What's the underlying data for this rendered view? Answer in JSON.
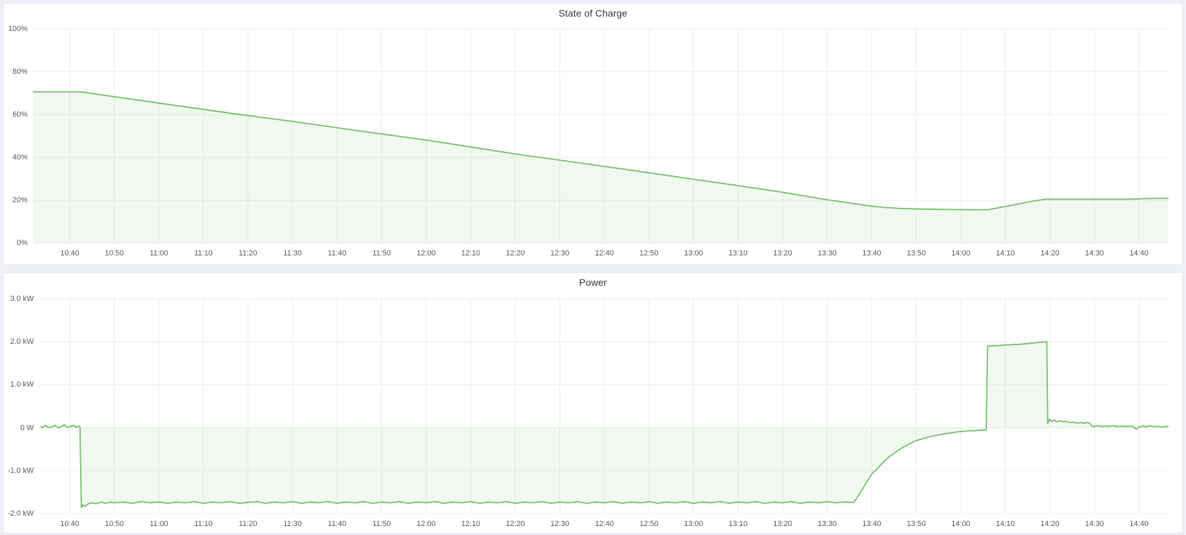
{
  "theme": {
    "page_bg": "#eef0f6",
    "panel_bg": "#ffffff",
    "panel_border": "#dfe3ee",
    "title_color": "#33363b",
    "tick_color": "#54575e",
    "grid_color": "#ebebeb",
    "line_green": "#73bf69",
    "fill_green": "rgba(115,191,105,0.10)"
  },
  "chart_data": [
    {
      "type": "area",
      "title": "State of Charge",
      "ylabel": "",
      "xlabel": "",
      "ylim": [
        0,
        100
      ],
      "x_range": [
        "10:32",
        "14:47"
      ],
      "grid": true,
      "legend": "none",
      "y_ticks": [
        {
          "v": 100,
          "label": "100%"
        },
        {
          "v": 80,
          "label": "80%"
        },
        {
          "v": 60,
          "label": "60%"
        },
        {
          "v": 40,
          "label": "40%"
        },
        {
          "v": 20,
          "label": "20%"
        },
        {
          "v": 0,
          "label": "0%"
        }
      ],
      "x_ticks": [
        "10:40",
        "10:50",
        "11:00",
        "11:10",
        "11:20",
        "11:30",
        "11:40",
        "11:50",
        "12:00",
        "12:10",
        "12:20",
        "12:30",
        "12:40",
        "12:50",
        "13:00",
        "13:10",
        "13:20",
        "13:30",
        "13:40",
        "13:50",
        "14:00",
        "14:10",
        "14:20",
        "14:30",
        "14:40"
      ],
      "series": [
        {
          "name": "State of Charge",
          "unit": "%",
          "color": "#73bf69",
          "fill": "rgba(115,191,105,0.10)",
          "baseline": 0,
          "points": [
            [
              "10:31.8",
              70.6
            ],
            [
              "10:37",
              70.6
            ],
            [
              "10:42.5",
              70.6
            ],
            [
              "11:00",
              65.4
            ],
            [
              "11:17",
              60.4
            ],
            [
              "11:30",
              56.8
            ],
            [
              "11:45",
              52.4
            ],
            [
              "12:00",
              48.1
            ],
            [
              "12:10",
              44.9
            ],
            [
              "12:20",
              41.6
            ],
            [
              "12:30",
              38.7
            ],
            [
              "12:40",
              35.8
            ],
            [
              "12:50",
              32.8
            ],
            [
              "13:00",
              29.8
            ],
            [
              "13:10",
              26.8
            ],
            [
              "13:20",
              23.7
            ],
            [
              "13:30",
              20.2
            ],
            [
              "13:33",
              19.3
            ],
            [
              "13:36",
              18.4
            ],
            [
              "13:38",
              17.8
            ],
            [
              "13:40",
              17.2
            ],
            [
              "13:43",
              16.6
            ],
            [
              "13:46",
              16.2
            ],
            [
              "13:50",
              15.9
            ],
            [
              "13:55",
              15.7
            ],
            [
              "14:00",
              15.6
            ],
            [
              "14:03",
              15.5
            ],
            [
              "14:06",
              15.5
            ],
            [
              "14:08",
              16.3
            ],
            [
              "14:10",
              17.1
            ],
            [
              "14:13",
              18.3
            ],
            [
              "14:16",
              19.5
            ],
            [
              "14:19",
              20.5
            ],
            [
              "14:25",
              20.5
            ],
            [
              "14:31",
              20.5
            ],
            [
              "14:37",
              20.5
            ],
            [
              "14:40",
              20.6
            ],
            [
              "14:41",
              20.8
            ],
            [
              "14:46.5",
              20.9
            ]
          ]
        }
      ]
    },
    {
      "type": "area",
      "title": "Power",
      "ylabel": "",
      "xlabel": "",
      "ylim": [
        -2,
        3
      ],
      "x_range": [
        "10:32",
        "14:47"
      ],
      "grid": true,
      "legend": "none",
      "y_ticks": [
        {
          "v": 3,
          "label": "3.0 kW"
        },
        {
          "v": 2,
          "label": "2.0 kW"
        },
        {
          "v": 1,
          "label": "1.0 kW"
        },
        {
          "v": 0,
          "label": "0 W"
        },
        {
          "v": -1,
          "label": "-1.0 kW"
        },
        {
          "v": -2,
          "label": "-2.0 kW"
        }
      ],
      "x_ticks": [
        "10:40",
        "10:50",
        "11:00",
        "11:10",
        "11:20",
        "11:30",
        "11:40",
        "11:50",
        "12:00",
        "12:10",
        "12:20",
        "12:30",
        "12:40",
        "12:50",
        "13:00",
        "13:10",
        "13:20",
        "13:30",
        "13:40",
        "13:50",
        "14:00",
        "14:10",
        "14:20",
        "14:30",
        "14:40"
      ],
      "series": [
        {
          "name": "Power",
          "unit": "kW",
          "color": "#73bf69",
          "fill": "rgba(115,191,105,0.10)",
          "baseline": 0,
          "points": [
            [
              "10:33.5",
              0.02
            ],
            [
              "10:34",
              0.01
            ],
            [
              "10:34.6",
              0.06
            ],
            [
              "10:35.2",
              0.0
            ],
            [
              "10:36",
              0.02
            ],
            [
              "10:36.6",
              0.06
            ],
            [
              "10:37.3",
              0.0
            ],
            [
              "10:38",
              0.02
            ],
            [
              "10:38.8",
              0.07
            ],
            [
              "10:39.5",
              0.01
            ],
            [
              "10:40.2",
              0.03
            ],
            [
              "10:40.8",
              0.06
            ],
            [
              "10:41.4",
              0.01
            ],
            [
              "10:42",
              0.04
            ],
            [
              "10:42.3",
              0.02
            ],
            [
              "10:42.6",
              -1.86
            ],
            [
              "10:43",
              -1.8
            ],
            [
              "10:43.5",
              -1.83
            ],
            [
              "10:44",
              -1.78
            ],
            [
              "10:45",
              -1.75
            ],
            [
              "10:46",
              -1.77
            ],
            [
              "10:47",
              -1.73
            ],
            [
              "10:48",
              -1.76
            ],
            [
              "10:49",
              -1.73
            ],
            [
              "10:50",
              -1.75
            ],
            [
              "10:52",
              -1.73
            ],
            [
              "10:54",
              -1.76
            ],
            [
              "10:56",
              -1.72
            ],
            [
              "10:58",
              -1.75
            ],
            [
              "11:00",
              -1.73
            ],
            [
              "11:02",
              -1.76
            ],
            [
              "11:04",
              -1.73
            ],
            [
              "11:06",
              -1.75
            ],
            [
              "11:08",
              -1.72
            ],
            [
              "11:10",
              -1.76
            ],
            [
              "11:12",
              -1.73
            ],
            [
              "11:14",
              -1.75
            ],
            [
              "11:16",
              -1.72
            ],
            [
              "11:18",
              -1.76
            ],
            [
              "11:20",
              -1.74
            ],
            [
              "11:22",
              -1.72
            ],
            [
              "11:24",
              -1.76
            ],
            [
              "11:26",
              -1.73
            ],
            [
              "11:28",
              -1.75
            ],
            [
              "11:30",
              -1.72
            ],
            [
              "11:32",
              -1.76
            ],
            [
              "11:34",
              -1.73
            ],
            [
              "11:36",
              -1.75
            ],
            [
              "11:38",
              -1.72
            ],
            [
              "11:40",
              -1.76
            ],
            [
              "11:42",
              -1.73
            ],
            [
              "11:44",
              -1.75
            ],
            [
              "11:46",
              -1.72
            ],
            [
              "11:48",
              -1.76
            ],
            [
              "11:50",
              -1.73
            ],
            [
              "11:52",
              -1.75
            ],
            [
              "11:54",
              -1.72
            ],
            [
              "11:56",
              -1.76
            ],
            [
              "11:58",
              -1.73
            ],
            [
              "12:00",
              -1.75
            ],
            [
              "12:02",
              -1.72
            ],
            [
              "12:04",
              -1.76
            ],
            [
              "12:06",
              -1.73
            ],
            [
              "12:08",
              -1.75
            ],
            [
              "12:10",
              -1.72
            ],
            [
              "12:12",
              -1.76
            ],
            [
              "12:14",
              -1.73
            ],
            [
              "12:16",
              -1.75
            ],
            [
              "12:18",
              -1.72
            ],
            [
              "12:20",
              -1.76
            ],
            [
              "12:22",
              -1.73
            ],
            [
              "12:24",
              -1.75
            ],
            [
              "12:26",
              -1.72
            ],
            [
              "12:28",
              -1.76
            ],
            [
              "12:30",
              -1.73
            ],
            [
              "12:32",
              -1.75
            ],
            [
              "12:34",
              -1.72
            ],
            [
              "12:36",
              -1.76
            ],
            [
              "12:38",
              -1.73
            ],
            [
              "12:40",
              -1.75
            ],
            [
              "12:42",
              -1.72
            ],
            [
              "12:44",
              -1.76
            ],
            [
              "12:46",
              -1.73
            ],
            [
              "12:48",
              -1.75
            ],
            [
              "12:50",
              -1.72
            ],
            [
              "12:52",
              -1.76
            ],
            [
              "12:54",
              -1.73
            ],
            [
              "12:56",
              -1.75
            ],
            [
              "12:58",
              -1.72
            ],
            [
              "13:00",
              -1.76
            ],
            [
              "13:02",
              -1.73
            ],
            [
              "13:04",
              -1.75
            ],
            [
              "13:06",
              -1.72
            ],
            [
              "13:08",
              -1.76
            ],
            [
              "13:10",
              -1.73
            ],
            [
              "13:12",
              -1.75
            ],
            [
              "13:14",
              -1.72
            ],
            [
              "13:16",
              -1.76
            ],
            [
              "13:18",
              -1.73
            ],
            [
              "13:20",
              -1.75
            ],
            [
              "13:22",
              -1.72
            ],
            [
              "13:24",
              -1.76
            ],
            [
              "13:26",
              -1.73
            ],
            [
              "13:28",
              -1.75
            ],
            [
              "13:30",
              -1.72
            ],
            [
              "13:32",
              -1.75
            ],
            [
              "13:34",
              -1.73
            ],
            [
              "13:36",
              -1.74
            ],
            [
              "13:37",
              -1.58
            ],
            [
              "13:38",
              -1.42
            ],
            [
              "13:39",
              -1.25
            ],
            [
              "13:40",
              -1.08
            ],
            [
              "13:41",
              -0.98
            ],
            [
              "13:42",
              -0.87
            ],
            [
              "13:43",
              -0.76
            ],
            [
              "13:44",
              -0.67
            ],
            [
              "13:45",
              -0.6
            ],
            [
              "13:46",
              -0.52
            ],
            [
              "13:47",
              -0.46
            ],
            [
              "13:48",
              -0.4
            ],
            [
              "13:49",
              -0.35
            ],
            [
              "13:50",
              -0.3
            ],
            [
              "13:51",
              -0.27
            ],
            [
              "13:52",
              -0.24
            ],
            [
              "13:53",
              -0.21
            ],
            [
              "13:54",
              -0.19
            ],
            [
              "13:55",
              -0.17
            ],
            [
              "13:56",
              -0.15
            ],
            [
              "13:57",
              -0.13
            ],
            [
              "13:58",
              -0.12
            ],
            [
              "13:59",
              -0.1
            ],
            [
              "14:00",
              -0.09
            ],
            [
              "14:01",
              -0.08
            ],
            [
              "14:02",
              -0.07
            ],
            [
              "14:03",
              -0.07
            ],
            [
              "14:04",
              -0.06
            ],
            [
              "14:05",
              -0.06
            ],
            [
              "14:05.7",
              -0.05
            ],
            [
              "14:06",
              1.9
            ],
            [
              "14:07",
              1.91
            ],
            [
              "14:08",
              1.91
            ],
            [
              "14:09",
              1.92
            ],
            [
              "14:10",
              1.93
            ],
            [
              "14:11",
              1.93
            ],
            [
              "14:12",
              1.94
            ],
            [
              "14:13",
              1.94
            ],
            [
              "14:14",
              1.95
            ],
            [
              "14:15",
              1.96
            ],
            [
              "14:16",
              1.97
            ],
            [
              "14:17",
              1.98
            ],
            [
              "14:18",
              1.99
            ],
            [
              "14:19",
              2.0
            ],
            [
              "14:19.3",
              2.0
            ],
            [
              "14:19.5",
              0.1
            ],
            [
              "14:19.9",
              0.2
            ],
            [
              "14:20.4",
              0.15
            ],
            [
              "14:20.9",
              0.18
            ],
            [
              "14:21.5",
              0.14
            ],
            [
              "14:22.2",
              0.16
            ],
            [
              "14:23",
              0.14
            ],
            [
              "14:23.8",
              0.15
            ],
            [
              "14:24.4",
              0.12
            ],
            [
              "14:25.2",
              0.13
            ],
            [
              "14:26",
              0.11
            ],
            [
              "14:26.8",
              0.12
            ],
            [
              "14:27.6",
              0.11
            ],
            [
              "14:28.4",
              0.12
            ],
            [
              "14:29",
              0.1
            ],
            [
              "14:29.4",
              0.04
            ],
            [
              "14:30",
              0.03
            ],
            [
              "14:30.8",
              0.05
            ],
            [
              "14:31.6",
              0.03
            ],
            [
              "14:32.4",
              0.04
            ],
            [
              "14:33.2",
              0.03
            ],
            [
              "14:34",
              0.05
            ],
            [
              "14:35",
              0.03
            ],
            [
              "14:36",
              0.04
            ],
            [
              "14:37",
              0.03
            ],
            [
              "14:38",
              0.04
            ],
            [
              "14:38.8",
              0.02
            ],
            [
              "14:39.4",
              -0.04
            ],
            [
              "14:40",
              0.02
            ],
            [
              "14:40.8",
              0.04
            ],
            [
              "14:41.6",
              0.02
            ],
            [
              "14:42.4",
              0.05
            ],
            [
              "14:43.2",
              0.02
            ],
            [
              "14:44",
              0.04
            ],
            [
              "14:45",
              0.02
            ],
            [
              "14:46",
              0.03
            ],
            [
              "14:46.5",
              0.03
            ]
          ]
        }
      ]
    }
  ]
}
